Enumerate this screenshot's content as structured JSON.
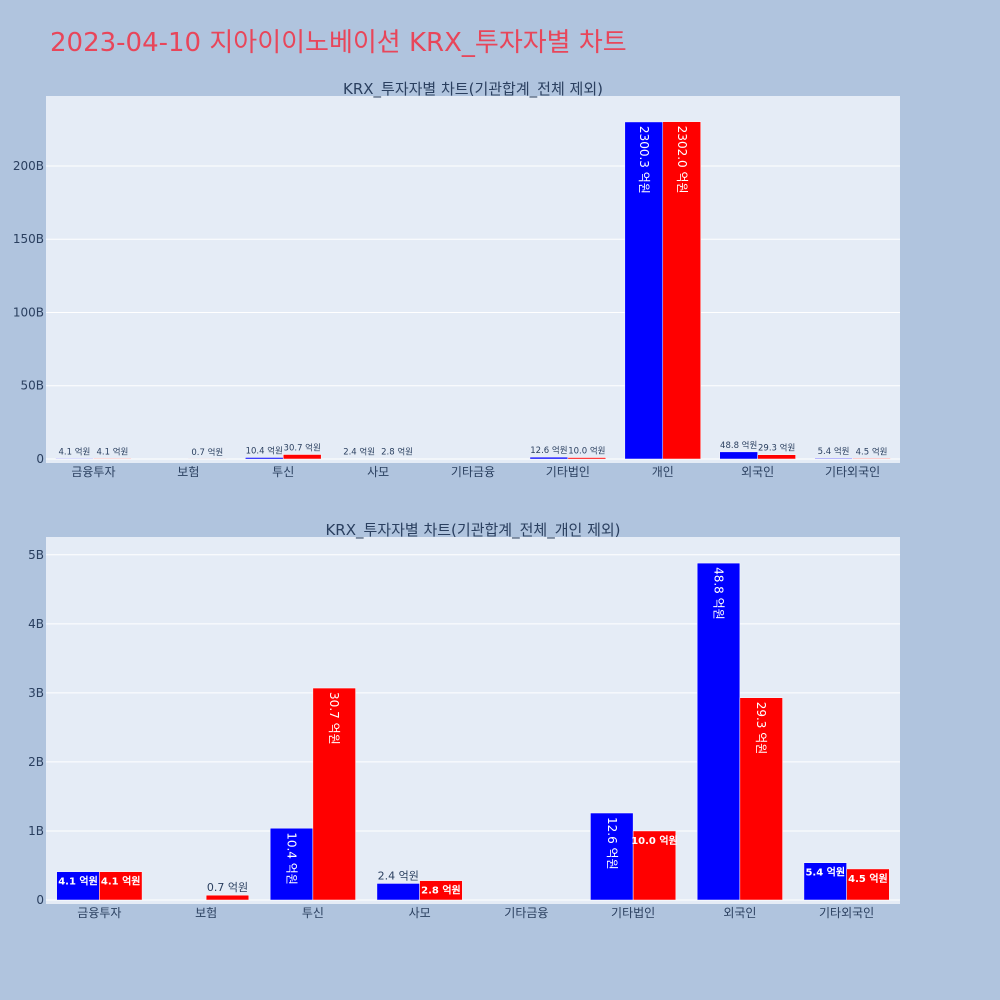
{
  "title": "2023-04-10 지아이이노베이션 KRX_투자자별 차트",
  "colors": {
    "buy": "#0000ff",
    "sell": "#ff0000",
    "plot_bg": "#e5ecf6",
    "page_bg": "#b0c4de",
    "title": "#e8465a"
  },
  "chart_data": [
    {
      "type": "bar",
      "title": "KRX_투자자별 차트(기관합계_전체 제외)",
      "categories": [
        "금융투자",
        "보험",
        "투신",
        "사모",
        "기타금융",
        "기타법인",
        "개인",
        "외국인",
        "기타외국인"
      ],
      "series": [
        {
          "color": "#0000ff",
          "values": [
            0.41,
            0,
            1.04,
            0.24,
            0,
            1.26,
            230.03,
            4.88,
            0.54
          ],
          "labels": [
            "4.1 억원",
            "",
            "10.4 억원",
            "2.4 억원",
            "",
            "12.6 억원",
            "2300.3 억원",
            "48.8 억원",
            "5.4 억원"
          ]
        },
        {
          "color": "#ff0000",
          "values": [
            0.41,
            0.07,
            3.07,
            0.28,
            0,
            1.0,
            230.2,
            2.93,
            0.45
          ],
          "labels": [
            "4.1 억원",
            "0.7 억원",
            "30.7 억원",
            "2.8 억원",
            "",
            "10.0 억원",
            "2302.0 억원",
            "29.3 억원",
            "4.5 억원"
          ]
        }
      ],
      "ylim": [
        0,
        245
      ],
      "yticks": [
        0,
        50,
        100,
        150,
        200
      ],
      "ytick_labels": [
        "0",
        "50B",
        "100B",
        "150B",
        "200B"
      ],
      "grid": true
    },
    {
      "type": "bar",
      "title": "KRX_투자자별 차트(기관합계_전체_개인 제외)",
      "categories": [
        "금융투자",
        "보험",
        "투신",
        "사모",
        "기타금융",
        "기타법인",
        "외국인",
        "기타외국인"
      ],
      "series": [
        {
          "color": "#0000ff",
          "values": [
            0.41,
            0,
            1.04,
            0.24,
            0,
            1.26,
            4.88,
            0.54
          ],
          "labels": [
            "4.1 억원",
            "",
            "10.4 억원",
            "2.4 억원",
            "",
            "12.6 억원",
            "48.8 억원",
            "5.4 억원"
          ]
        },
        {
          "color": "#ff0000",
          "values": [
            0.41,
            0.07,
            3.07,
            0.28,
            0,
            1.0,
            2.93,
            0.45
          ],
          "labels": [
            "4.1 억원",
            "0.7 억원",
            "30.7 억원",
            "2.8 억원",
            "",
            "10.0 억원",
            "29.3 억원",
            "4.5 억원"
          ]
        }
      ],
      "ylim": [
        0,
        5.2
      ],
      "yticks": [
        0,
        1,
        2,
        3,
        4,
        5
      ],
      "ytick_labels": [
        "0",
        "1B",
        "2B",
        "3B",
        "4B",
        "5B"
      ],
      "grid": true
    }
  ]
}
